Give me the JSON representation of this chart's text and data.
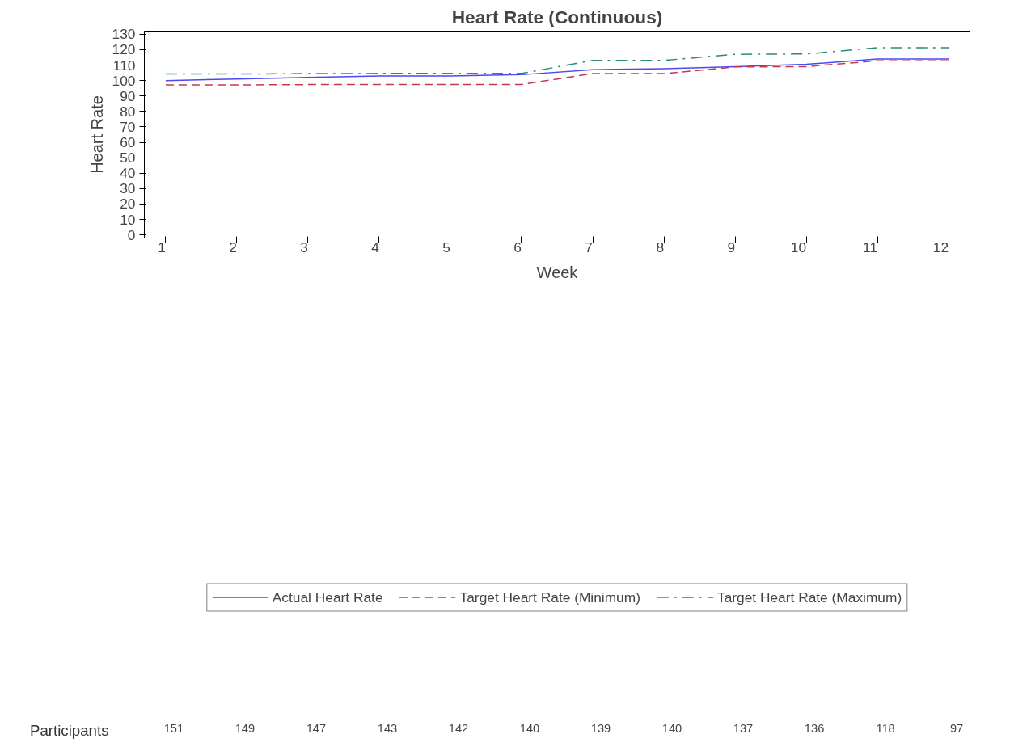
{
  "chart_data": {
    "type": "line",
    "title": "Heart Rate (Continuous)",
    "xlabel": "Week",
    "ylabel": "Heart Rate",
    "x": [
      1,
      2,
      3,
      4,
      5,
      6,
      7,
      8,
      9,
      10,
      11,
      12
    ],
    "series": [
      {
        "name": "Actual Heart Rate",
        "color": "#4a4af0",
        "line_style": "solid",
        "values": [
          100,
          101,
          102,
          103,
          103,
          103.8,
          107,
          107.7,
          109,
          110.5,
          114,
          114
        ]
      },
      {
        "name": "Target Heart Rate (Minimum)",
        "color": "#c8384a",
        "line_style": "dashed",
        "values": [
          97.2,
          97.2,
          97.4,
          97.5,
          97.5,
          97.5,
          104.5,
          104.5,
          108.8,
          109,
          112.8,
          112.8
        ]
      },
      {
        "name": "Target Heart Rate (Maximum)",
        "color": "#2a8a7a",
        "line_style": "dashdot",
        "values": [
          104.3,
          104.2,
          104.5,
          104.6,
          104.6,
          104.6,
          113,
          113,
          117,
          117.2,
          121.3,
          121.3
        ]
      }
    ],
    "xlim": [
      0.7,
      12.3
    ],
    "xticks": [
      1,
      2,
      3,
      4,
      5,
      6,
      7,
      8,
      9,
      10,
      11,
      12
    ],
    "ylim": [
      -2,
      132
    ],
    "yticks": [
      0,
      10,
      20,
      30,
      40,
      50,
      60,
      70,
      80,
      90,
      100,
      110,
      120,
      130
    ],
    "grid": false,
    "legend": "bottom",
    "marker": "none",
    "annotations": [
      "Participants",
      "151",
      "149",
      "147",
      "143",
      "142",
      "140",
      "139",
      "140",
      "137",
      "136",
      "118",
      "97"
    ]
  }
}
